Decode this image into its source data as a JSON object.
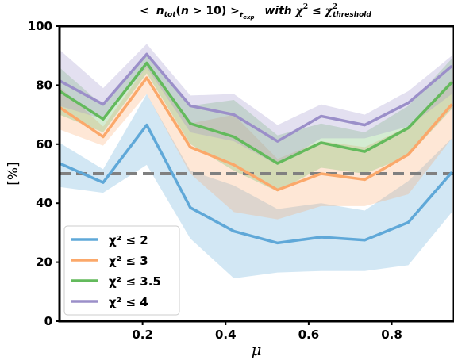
{
  "chart_data": {
    "type": "line",
    "title": "< n_tot(n > 10) >_t_exp  with χ² ≤ χ²_threshold",
    "xlabel": "μ",
    "ylabel": "[%]",
    "xlim": [
      0.0,
      0.95
    ],
    "ylim": [
      0,
      100
    ],
    "xticks": [
      "0.2",
      "0.4",
      "0.6",
      "0.8"
    ],
    "yticks": [
      "0",
      "20",
      "40",
      "60",
      "80",
      "100"
    ],
    "x": [
      0.0,
      0.105,
      0.21,
      0.315,
      0.42,
      0.525,
      0.63,
      0.735,
      0.84,
      0.945
    ],
    "reference_line": {
      "y": 50,
      "style": "dashed",
      "color": "#808080"
    },
    "legend_position": "lower-left",
    "series": [
      {
        "name": "χ² ≤ 2",
        "color": "#5fa8d8",
        "values": [
          53.5,
          47,
          66.5,
          38.5,
          30.5,
          26.5,
          28.5,
          27.5,
          33.5,
          50.5
        ],
        "lower": [
          45.5,
          43.5,
          53,
          28,
          14.5,
          16.5,
          17,
          17,
          19,
          37
        ],
        "upper": [
          60.5,
          51.5,
          77,
          51,
          46,
          38,
          40,
          37.5,
          47.5,
          62
        ]
      },
      {
        "name": "χ² ≤ 3",
        "color": "#fba86a",
        "values": [
          72.5,
          62.5,
          82.5,
          59,
          53,
          44.5,
          50,
          48,
          56.5,
          73.5
        ],
        "lower": [
          65,
          59.5,
          77,
          50,
          37,
          34.5,
          39,
          39,
          43,
          62
        ],
        "upper": [
          79.5,
          66,
          86.5,
          67,
          70,
          55,
          61,
          59,
          66,
          82
        ]
      },
      {
        "name": "χ² ≤ 3.5",
        "color": "#63ba5c",
        "values": [
          78,
          68.5,
          87.5,
          67,
          62.5,
          53.5,
          60.5,
          57.5,
          65.5,
          81
        ],
        "lower": [
          70,
          64,
          84,
          60,
          51,
          44,
          52,
          50,
          56,
          72
        ],
        "upper": [
          86,
          73,
          91,
          73,
          75,
          63,
          67,
          64,
          73,
          89
        ]
      },
      {
        "name": "χ² ≤ 4",
        "color": "#9b8fc9",
        "values": [
          81.5,
          73.5,
          90.5,
          73,
          70,
          61,
          69.5,
          66.5,
          74,
          86.5
        ],
        "lower": [
          73,
          68.5,
          86,
          64,
          61,
          53,
          62,
          62,
          66,
          77
        ],
        "upper": [
          92,
          79,
          94,
          76.5,
          77,
          66.5,
          73.5,
          70,
          78,
          90
        ]
      }
    ]
  }
}
